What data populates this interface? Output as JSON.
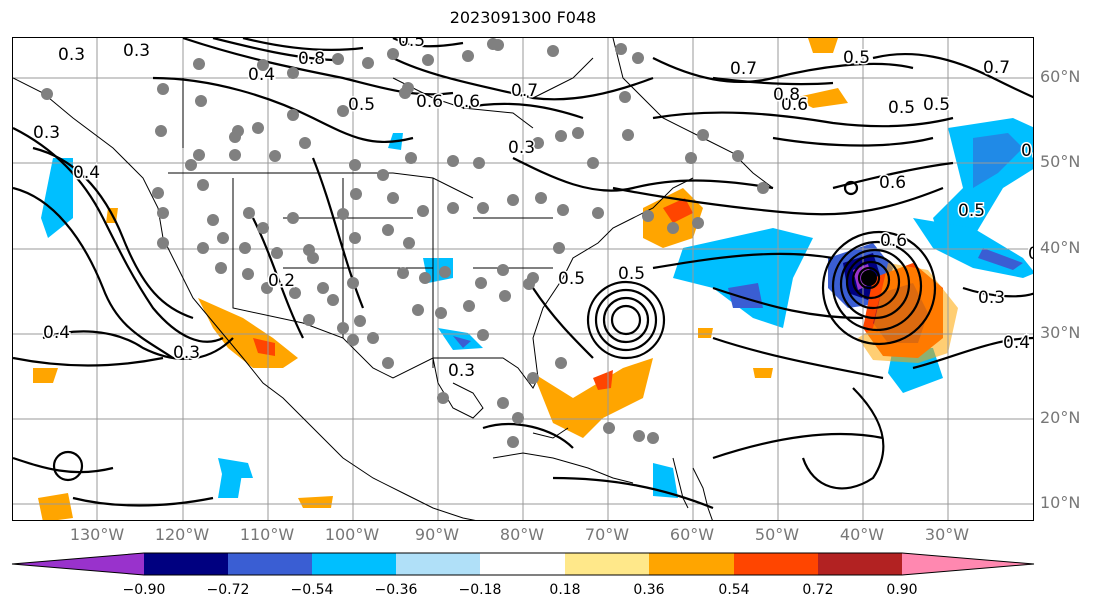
{
  "title": "2023091300 F048",
  "lon_labels": [
    "130°W",
    "120°W",
    "110°W",
    "100°W",
    "90°W",
    "80°W",
    "70°W",
    "60°W",
    "50°W",
    "40°W",
    "30°W"
  ],
  "lat_labels": [
    "60°N",
    "50°N",
    "40°N",
    "30°N",
    "20°N",
    "10°N"
  ],
  "colorbar": {
    "ticks": [
      "−0.90",
      "−0.72",
      "−0.54",
      "−0.36",
      "−0.18",
      "0.18",
      "0.36",
      "0.54",
      "0.72",
      "0.90"
    ],
    "colors": [
      "#9932cc",
      "#000080",
      "#3a5ed3",
      "#00bfff",
      "#b0e0f8",
      "#ffffff",
      "#ffe88a",
      "#ffa500",
      "#ff4500",
      "#b22222",
      "#ff88b0"
    ]
  },
  "contour_labels": [
    "0.3",
    "0.3",
    "0.5",
    "0.6",
    "0.8",
    "0.4",
    "0.5",
    "0.7",
    "0.7",
    "0.6",
    "0.6",
    "0.5",
    "0.7",
    "0.5",
    "0.5",
    "0.8",
    "0.6",
    "0.3",
    "0.5",
    "0.6",
    "0.4",
    "0.5",
    "0.6",
    "0.3",
    "0.4",
    "0.4",
    "0.3",
    "0.2",
    "0.3",
    "0.5",
    "0.3",
    "0.4"
  ],
  "map_layers": {
    "stations_color": "#808080",
    "contour_color": "#000000",
    "grid_color": "#999999"
  }
}
